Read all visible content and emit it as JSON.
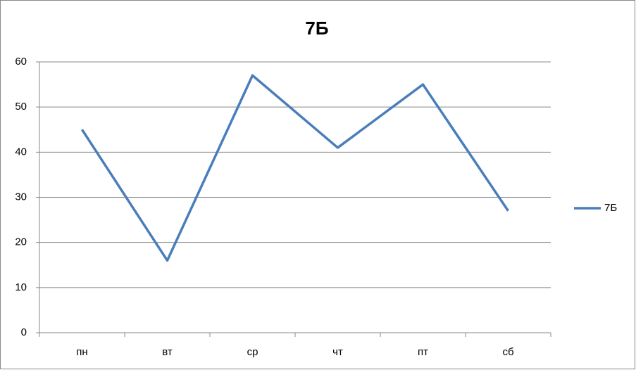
{
  "chart_data": {
    "type": "line",
    "title": "7Б",
    "categories": [
      "пн",
      "вт",
      "ср",
      "чт",
      "пт",
      "сб"
    ],
    "series": [
      {
        "name": "7Б",
        "color": "#4a7ebb",
        "values": [
          45,
          16,
          57,
          41,
          55,
          27
        ]
      }
    ],
    "ylim": [
      0,
      60
    ],
    "yticks": [
      0,
      10,
      20,
      30,
      40,
      50,
      60
    ],
    "grid": true,
    "legend": "right"
  }
}
